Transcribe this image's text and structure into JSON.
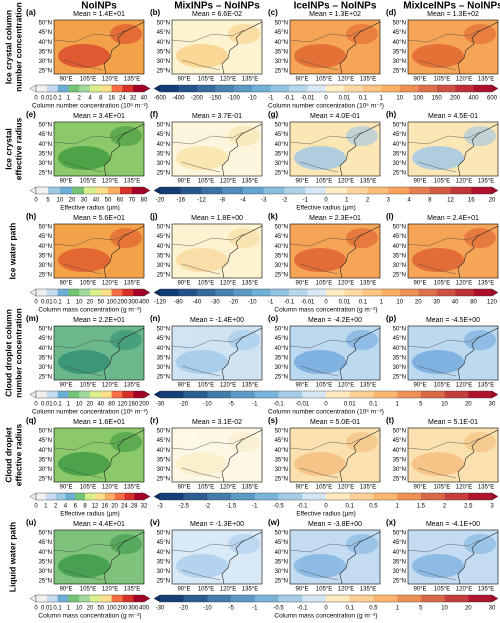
{
  "columns": [
    "NoINPs",
    "MixINPs – NoINPs",
    "IceINPs – NoINPs",
    "MixIceINPs – NoINPs"
  ],
  "lat_labels": [
    "50°N",
    "45°N",
    "40°N",
    "35°N",
    "30°N",
    "25°N"
  ],
  "lon_labels": [
    "90°E",
    "105°E",
    "120°E",
    "135°E"
  ],
  "rows": [
    {
      "label": [
        "Ice crystal column",
        "number concentration"
      ],
      "panels": [
        {
          "letter": "(a)",
          "mean": "Mean = 1.4E+01"
        },
        {
          "letter": "(b)",
          "mean": "Mean = 6.6E-02"
        },
        {
          "letter": "(c)",
          "mean": "Mean = 1.3E+02"
        },
        {
          "letter": "(d)",
          "mean": "Mean = 1.3E+02"
        }
      ],
      "left_bar": {
        "ticks": [
          "0",
          "0.01",
          "0.1",
          "1",
          "2",
          "4",
          "8",
          "16",
          "24",
          "32",
          "40"
        ],
        "label": "Column number concentration (10⁶ m⁻²)"
      },
      "right_bar": {
        "ticks": [
          "-600",
          "-400",
          "-200",
          "-150",
          "-100",
          "-10",
          "-1",
          "-0.1",
          "-0.01",
          "0",
          "0.01",
          "0.1",
          "1",
          "10",
          "100",
          "150",
          "200",
          "400",
          "600"
        ],
        "label": "Column number concentration (10⁶ m⁻²)"
      }
    },
    {
      "label": [
        "Ice crystal",
        "effective radius"
      ],
      "panels": [
        {
          "letter": "(e)",
          "mean": "Mean = 3.4E+01"
        },
        {
          "letter": "(f)",
          "mean": "Mean = 3.7E-01"
        },
        {
          "letter": "(g)",
          "mean": "Mean = 4.0E-01"
        },
        {
          "letter": "(h)",
          "mean": "Mean = 4.5E-01"
        }
      ],
      "left_bar": {
        "ticks": [
          "0",
          "5",
          "10",
          "20",
          "30",
          "40",
          "50",
          "60",
          "70",
          "80"
        ],
        "label": "Effective radius (µm)"
      },
      "right_bar": {
        "ticks": [
          "-20",
          "-16",
          "-12",
          "-8",
          "-4",
          "-3",
          "-2",
          "-1",
          "0",
          "1",
          "2",
          "3",
          "4",
          "8",
          "12",
          "16",
          "20"
        ],
        "label": "Effective radius (µm)"
      }
    },
    {
      "label": [
        "Ice water path"
      ],
      "panels": [
        {
          "letter": "(h)",
          "mean": "Mean = 5.6E+01"
        },
        {
          "letter": "(j)",
          "mean": "Mean = 1.8E+00"
        },
        {
          "letter": "(k)",
          "mean": "Mean = 2.3E+01"
        },
        {
          "letter": "(l)",
          "mean": "Mean = 2.4E+01"
        }
      ],
      "left_bar": {
        "ticks": [
          "0",
          "0.01",
          "0.1",
          "1",
          "10",
          "20",
          "50",
          "100",
          "200",
          "300",
          "400"
        ],
        "label": "Column mass concentration (g m⁻²)"
      },
      "right_bar": {
        "ticks": [
          "-120",
          "-80",
          "-40",
          "-30",
          "-20",
          "-10",
          "-1",
          "-0.1",
          "-0.01",
          "0",
          "0.01",
          "0.1",
          "1",
          "10",
          "20",
          "30",
          "40",
          "80",
          "120"
        ],
        "label": "Column mass concentration (g m⁻²)"
      }
    },
    {
      "label": [
        "Cloud droplet column",
        "number concentration"
      ],
      "panels": [
        {
          "letter": "(m)",
          "mean": "Mean = 2.2E+01"
        },
        {
          "letter": "(n)",
          "mean": "Mean = -1.4E+00"
        },
        {
          "letter": "(o)",
          "mean": "Mean = -4.2E+00"
        },
        {
          "letter": "(p)",
          "mean": "Mean = -4.5E+00"
        }
      ],
      "left_bar": {
        "ticks": [
          "0",
          "0.01",
          "0.1",
          "1",
          "10",
          "20",
          "40",
          "80",
          "120",
          "160",
          "200"
        ],
        "label": "Column number concentration (10⁶ m⁻²)"
      },
      "right_bar": {
        "ticks": [
          "-30",
          "-20",
          "-10",
          "-5",
          "-1",
          "-0.1",
          "-0.01",
          "0",
          "0.01",
          "0.1",
          "1",
          "5",
          "10",
          "20",
          "30"
        ],
        "label": "Column number concentration (10⁶ m⁻²)"
      }
    },
    {
      "label": [
        "Cloud droplet",
        "effective radius"
      ],
      "panels": [
        {
          "letter": "(q)",
          "mean": "Mean = 1.6E+01"
        },
        {
          "letter": "(r)",
          "mean": "Mean = 3.1E-02"
        },
        {
          "letter": "(s)",
          "mean": "Mean = 5.0E-01"
        },
        {
          "letter": "(t)",
          "mean": "Mean = 5.1E-01"
        }
      ],
      "left_bar": {
        "ticks": [
          "0",
          "1",
          "2",
          "4",
          "6",
          "8",
          "12",
          "16",
          "20",
          "24",
          "28",
          "32"
        ],
        "label": "Effective radius (µm)"
      },
      "right_bar": {
        "ticks": [
          "-3",
          "-2.5",
          "-2",
          "-1.5",
          "-1",
          "-0.5",
          "-0.1",
          "0",
          "0.1",
          "0.5",
          "1",
          "1.5",
          "2",
          "2.5",
          "3"
        ],
        "label": "Effective radius (µm)"
      }
    },
    {
      "label": [
        "Liquid water path"
      ],
      "panels": [
        {
          "letter": "(u)",
          "mean": "Mean = 4.4E+01"
        },
        {
          "letter": "(v)",
          "mean": "Mean = -1.3E+00"
        },
        {
          "letter": "(w)",
          "mean": "Mean = -3.8E+00"
        },
        {
          "letter": "(x)",
          "mean": "Mean = -4.1E+00"
        }
      ],
      "left_bar": {
        "ticks": [
          "0",
          "0.01",
          "0.1",
          "1",
          "10",
          "20",
          "50",
          "100",
          "200",
          "300",
          "400"
        ],
        "label": "Column mass concentration (g m⁻²)"
      },
      "right_bar": {
        "ticks": [
          "-30",
          "-20",
          "-10",
          "-5",
          "-1",
          "-0.5",
          "-0.1",
          "0",
          "0.1",
          "0.5",
          "1",
          "5",
          "10",
          "20",
          "30"
        ],
        "label": "Column mass concentration (g m⁻²)"
      }
    }
  ]
}
